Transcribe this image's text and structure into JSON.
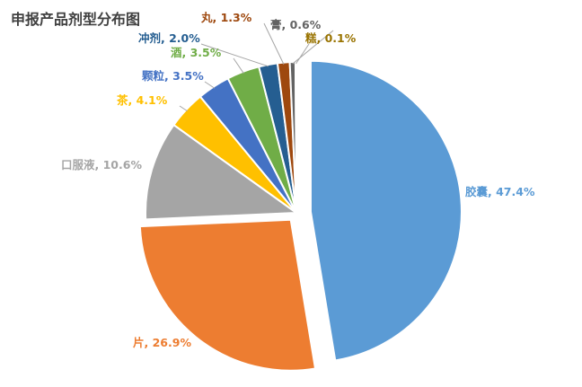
{
  "chart_data": {
    "type": "pie",
    "title": "申报产品剂型分布图",
    "slices": [
      {
        "label": "胶囊",
        "value": 47.4,
        "display": "胶囊, 47.4%",
        "color": "#5B9BD5"
      },
      {
        "label": "片",
        "value": 26.9,
        "display": "片, 26.9%",
        "color": "#ED7D31"
      },
      {
        "label": "口服液",
        "value": 10.6,
        "display": "口服液, 10.6%",
        "color": "#A5A5A5"
      },
      {
        "label": "茶",
        "value": 4.1,
        "display": "茶, 4.1%",
        "color": "#FFC000"
      },
      {
        "label": "颗粒",
        "value": 3.5,
        "display": "颗粒, 3.5%",
        "color": "#4472C4"
      },
      {
        "label": "酒",
        "value": 3.5,
        "display": "酒, 3.5%",
        "color": "#70AD47"
      },
      {
        "label": "冲剂",
        "value": 2.0,
        "display": "冲剂, 2.0%",
        "color": "#255E91"
      },
      {
        "label": "丸",
        "value": 1.3,
        "display": "丸, 1.3%",
        "color": "#9E480E"
      },
      {
        "label": "膏",
        "value": 0.6,
        "display": "膏, 0.6%",
        "color": "#636363"
      },
      {
        "label": "糕",
        "value": 0.1,
        "display": "糕, 0.1%",
        "color": "#997300"
      }
    ],
    "exploded_slice": "胶囊"
  }
}
